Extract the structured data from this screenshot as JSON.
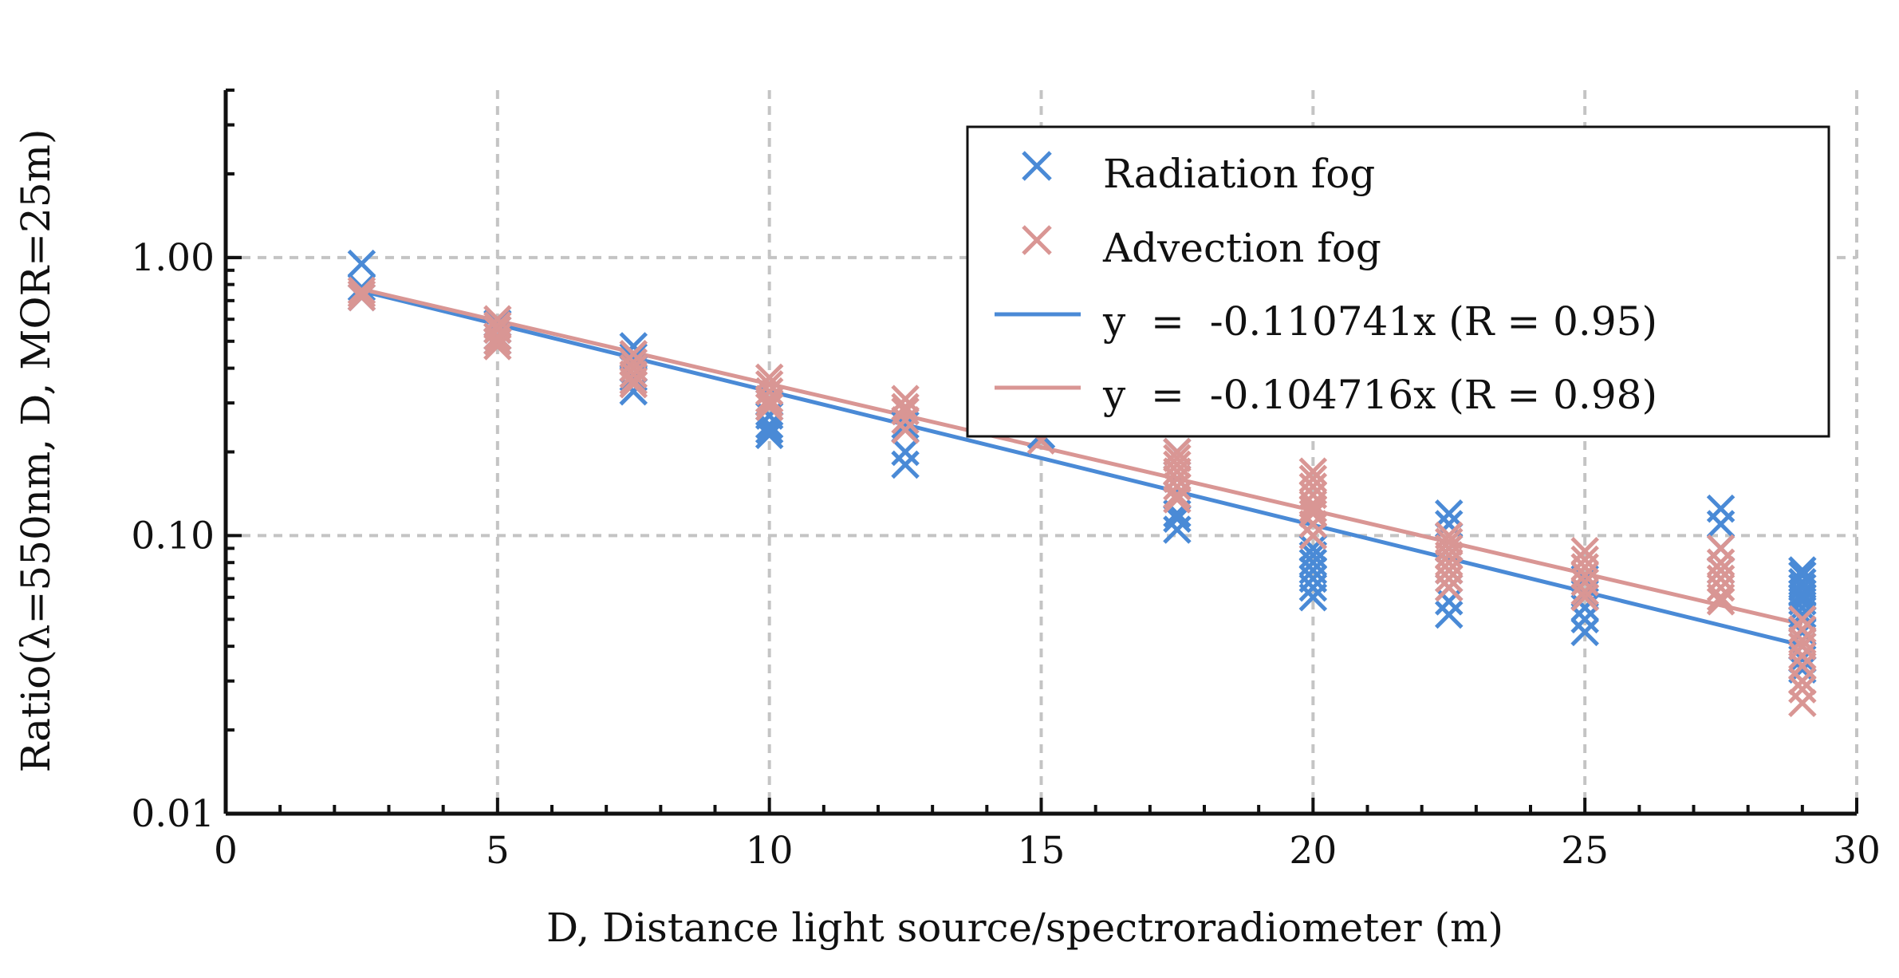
{
  "chart_data": {
    "type": "scatter",
    "title": "",
    "xlabel": "D, Distance light source/spectroradiometer (m)",
    "ylabel": "Ratio(λ=550nm, D, MOR=25m)",
    "xlim": [
      0,
      30
    ],
    "ylim": [
      0.01,
      4
    ],
    "yscale": "log",
    "grid": true,
    "legend_position": "top-right",
    "x_ticks": [
      "0",
      "5",
      "10",
      "15",
      "20",
      "25",
      "30"
    ],
    "y_ticks": [
      "0.01",
      "0.10",
      "1.00"
    ],
    "series": [
      {
        "name": "Radiation fog",
        "kind": "scatter",
        "marker": "x",
        "color": "#4a8ad6",
        "points": [
          [
            2.5,
            0.95
          ],
          [
            2.5,
            0.78
          ],
          [
            2.5,
            0.72
          ],
          [
            5,
            0.58
          ],
          [
            5,
            0.55
          ],
          [
            5,
            0.52
          ],
          [
            5,
            0.5
          ],
          [
            7.5,
            0.48
          ],
          [
            7.5,
            0.44
          ],
          [
            7.5,
            0.4
          ],
          [
            7.5,
            0.37
          ],
          [
            7.5,
            0.33
          ],
          [
            10,
            0.3
          ],
          [
            10,
            0.27
          ],
          [
            10,
            0.25
          ],
          [
            10,
            0.24
          ],
          [
            10,
            0.23
          ],
          [
            12.5,
            0.25
          ],
          [
            12.5,
            0.2
          ],
          [
            12.5,
            0.18
          ],
          [
            15,
            0.23
          ],
          [
            17.5,
            0.2
          ],
          [
            17.5,
            0.16
          ],
          [
            17.5,
            0.14
          ],
          [
            17.5,
            0.12
          ],
          [
            17.5,
            0.115
          ],
          [
            17.5,
            0.105
          ],
          [
            20,
            0.09
          ],
          [
            20,
            0.085
          ],
          [
            20,
            0.08
          ],
          [
            20,
            0.075
          ],
          [
            20,
            0.07
          ],
          [
            20,
            0.065
          ],
          [
            20,
            0.06
          ],
          [
            22.5,
            0.12
          ],
          [
            22.5,
            0.11
          ],
          [
            22.5,
            0.09
          ],
          [
            22.5,
            0.075
          ],
          [
            22.5,
            0.065
          ],
          [
            22.5,
            0.058
          ],
          [
            22.5,
            0.052
          ],
          [
            25,
            0.07
          ],
          [
            25,
            0.062
          ],
          [
            25,
            0.055
          ],
          [
            25,
            0.05
          ],
          [
            25,
            0.045
          ],
          [
            27.5,
            0.125
          ],
          [
            27.5,
            0.11
          ],
          [
            27.5,
            0.09
          ],
          [
            27.5,
            0.075
          ],
          [
            29,
            0.075
          ],
          [
            29,
            0.072
          ],
          [
            29,
            0.068
          ],
          [
            29,
            0.065
          ],
          [
            29,
            0.062
          ],
          [
            29,
            0.06
          ],
          [
            29,
            0.058
          ],
          [
            29,
            0.055
          ],
          [
            29,
            0.052
          ],
          [
            29,
            0.05
          ],
          [
            29,
            0.045
          ],
          [
            29,
            0.04
          ],
          [
            29,
            0.036
          ],
          [
            29,
            0.033
          ]
        ]
      },
      {
        "name": "Advection fog",
        "kind": "scatter",
        "marker": "x",
        "color": "#d99694",
        "points": [
          [
            2.5,
            0.76
          ],
          [
            2.5,
            0.74
          ],
          [
            2.5,
            0.72
          ],
          [
            5,
            0.6
          ],
          [
            5,
            0.57
          ],
          [
            5,
            0.55
          ],
          [
            5,
            0.52
          ],
          [
            5,
            0.5
          ],
          [
            5,
            0.48
          ],
          [
            7.5,
            0.45
          ],
          [
            7.5,
            0.42
          ],
          [
            7.5,
            0.4
          ],
          [
            7.5,
            0.38
          ],
          [
            7.5,
            0.36
          ],
          [
            7.5,
            0.35
          ],
          [
            10,
            0.37
          ],
          [
            10,
            0.35
          ],
          [
            10,
            0.33
          ],
          [
            10,
            0.31
          ],
          [
            10,
            0.3
          ],
          [
            10,
            0.29
          ],
          [
            12.5,
            0.31
          ],
          [
            12.5,
            0.29
          ],
          [
            12.5,
            0.28
          ],
          [
            12.5,
            0.26
          ],
          [
            12.5,
            0.24
          ],
          [
            15,
            0.22
          ],
          [
            17.5,
            0.2
          ],
          [
            17.5,
            0.19
          ],
          [
            17.5,
            0.18
          ],
          [
            17.5,
            0.17
          ],
          [
            17.5,
            0.16
          ],
          [
            17.5,
            0.15
          ],
          [
            17.5,
            0.14
          ],
          [
            17.5,
            0.135
          ],
          [
            20,
            0.17
          ],
          [
            20,
            0.16
          ],
          [
            20,
            0.15
          ],
          [
            20,
            0.14
          ],
          [
            20,
            0.13
          ],
          [
            20,
            0.125
          ],
          [
            20,
            0.12
          ],
          [
            20,
            0.11
          ],
          [
            20,
            0.1
          ],
          [
            22.5,
            0.1
          ],
          [
            22.5,
            0.095
          ],
          [
            22.5,
            0.09
          ],
          [
            22.5,
            0.085
          ],
          [
            22.5,
            0.08
          ],
          [
            22.5,
            0.075
          ],
          [
            22.5,
            0.07
          ],
          [
            22.5,
            0.065
          ],
          [
            25,
            0.088
          ],
          [
            25,
            0.082
          ],
          [
            25,
            0.077
          ],
          [
            25,
            0.072
          ],
          [
            25,
            0.068
          ],
          [
            25,
            0.063
          ],
          [
            25,
            0.06
          ],
          [
            27.5,
            0.09
          ],
          [
            27.5,
            0.08
          ],
          [
            27.5,
            0.075
          ],
          [
            27.5,
            0.07
          ],
          [
            27.5,
            0.065
          ],
          [
            27.5,
            0.06
          ],
          [
            27.5,
            0.058
          ],
          [
            29,
            0.05
          ],
          [
            29,
            0.046
          ],
          [
            29,
            0.042
          ],
          [
            29,
            0.04
          ],
          [
            29,
            0.037
          ],
          [
            29,
            0.034
          ],
          [
            29,
            0.03
          ],
          [
            29,
            0.028
          ],
          [
            29,
            0.025
          ]
        ]
      },
      {
        "name": "y  =  -0.110741x (R = 0.95)",
        "kind": "line",
        "color": "#4a8ad6",
        "slope": -0.110741,
        "x": [
          2.5,
          29
        ]
      },
      {
        "name": "y  =  -0.104716x (R = 0.98)",
        "kind": "line",
        "color": "#d99694",
        "slope": -0.104716,
        "x": [
          2.5,
          29
        ]
      }
    ]
  }
}
